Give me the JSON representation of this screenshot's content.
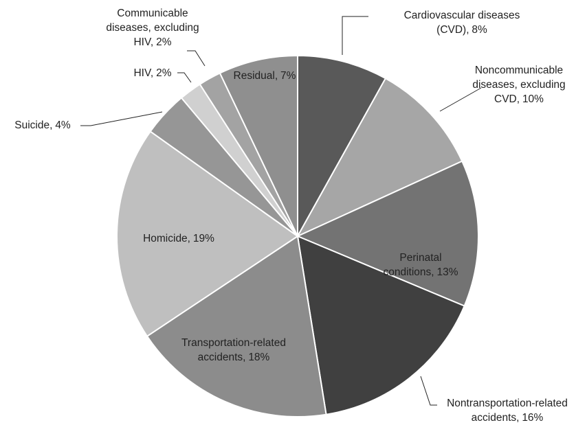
{
  "chart_data": {
    "type": "pie",
    "categories": [
      "Cardiovascular diseases (CVD),",
      "Noncommunicable diseases, excluding CVD,",
      "Perinatal conditions,",
      "Nontransportation-related accidents,",
      "Transportation-related accidents,",
      "Homicide,",
      "Suicide,",
      "HIV,",
      "Communicable diseases, excluding HIV,",
      "Residual,"
    ],
    "values": [
      8,
      10,
      13,
      16,
      18,
      19,
      4,
      2,
      2,
      7
    ],
    "value_labels": [
      "8%",
      "10%",
      "13%",
      "16%",
      "18%",
      "19%",
      "4%",
      "2%",
      "2%",
      "7%"
    ],
    "colors": [
      "#595959",
      "#a6a6a6",
      "#737373",
      "#404040",
      "#8c8c8c",
      "#bfbfbf",
      "#969696",
      "#d0d0d0",
      "#a3a3a3",
      "#8f8f8f"
    ]
  }
}
